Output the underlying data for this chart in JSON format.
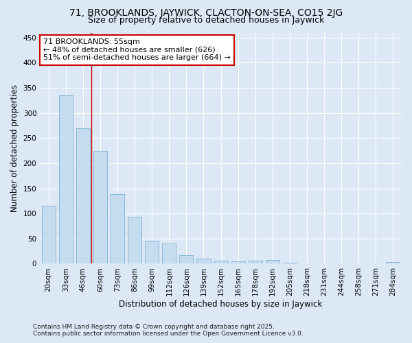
{
  "title_line1": "71, BROOKLANDS, JAYWICK, CLACTON-ON-SEA, CO15 2JG",
  "title_line2": "Size of property relative to detached houses in Jaywick",
  "xlabel": "Distribution of detached houses by size in Jaywick",
  "ylabel": "Number of detached properties",
  "categories": [
    "20sqm",
    "33sqm",
    "46sqm",
    "60sqm",
    "73sqm",
    "86sqm",
    "99sqm",
    "112sqm",
    "126sqm",
    "139sqm",
    "152sqm",
    "165sqm",
    "178sqm",
    "192sqm",
    "205sqm",
    "218sqm",
    "231sqm",
    "244sqm",
    "258sqm",
    "271sqm",
    "284sqm"
  ],
  "values": [
    115,
    335,
    270,
    225,
    138,
    93,
    46,
    40,
    17,
    10,
    6,
    5,
    6,
    7,
    2,
    0,
    0,
    0,
    0,
    0,
    3
  ],
  "bar_color": "#c6dcf0",
  "bar_edgecolor": "#7bafd4",
  "vline_x": 2.5,
  "vline_color": "#cc0000",
  "annotation_line1": "71 BROOKLANDS: 55sqm",
  "annotation_line2": "← 48% of detached houses are smaller (626)",
  "annotation_line3": "51% of semi-detached houses are larger (664) →",
  "box_facecolor": "white",
  "box_edgecolor": "#cc0000",
  "ylim": [
    0,
    460
  ],
  "yticks": [
    0,
    50,
    100,
    150,
    200,
    250,
    300,
    350,
    400,
    450
  ],
  "footer_line1": "Contains HM Land Registry data © Crown copyright and database right 2025.",
  "footer_line2": "Contains public sector information licensed under the Open Government Licence v3.0.",
  "bg_color": "#dce8f5",
  "plot_bg_color": "#dce8f5",
  "grid_color": "#ffffff",
  "title_fontsize": 10,
  "subtitle_fontsize": 9,
  "tick_fontsize": 7.5,
  "label_fontsize": 8.5,
  "annot_fontsize": 8,
  "footer_fontsize": 6.5
}
